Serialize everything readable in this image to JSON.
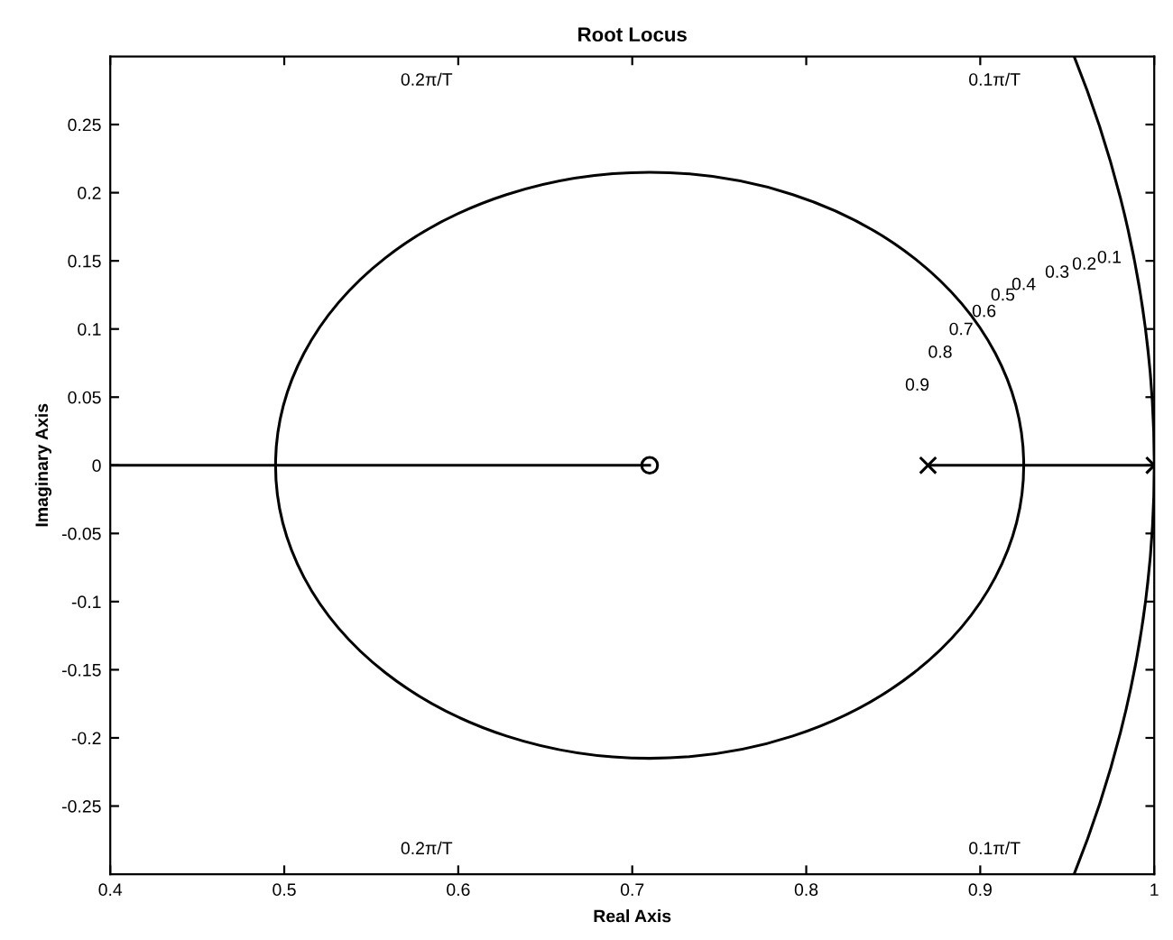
{
  "chart_data": {
    "type": "line",
    "title": "Root Locus",
    "xlabel": "Real Axis",
    "ylabel": "Imaginary Axis",
    "xlim": [
      0.4,
      1.0
    ],
    "ylim": [
      -0.3,
      0.3
    ],
    "xticks": [
      0.4,
      0.5,
      0.6,
      0.7,
      0.8,
      0.9,
      1
    ],
    "yticks": [
      -0.25,
      -0.2,
      -0.15,
      -0.1,
      -0.05,
      0,
      0.05,
      0.1,
      0.15,
      0.2,
      0.25
    ],
    "grid": false,
    "series": [
      {
        "color": "#000000",
        "x": [
          0.4,
          0.71
        ],
        "values": [
          0,
          0
        ]
      },
      {
        "color": "#000000",
        "x": [
          0.87,
          1.0
        ],
        "values": [
          0,
          0
        ]
      },
      {
        "type": "scatter",
        "color": "#000000",
        "marker": "circle",
        "x": [
          0.71
        ],
        "values": [
          0
        ]
      },
      {
        "type": "scatter",
        "color": "#000000",
        "marker": "cross",
        "x": [
          0.87,
          1.0
        ],
        "values": [
          0,
          0
        ]
      }
    ],
    "annotations": [
      "0.9",
      "0.8",
      "0.7",
      "0.6",
      "0.5",
      "0.4",
      "0.3",
      "0.2",
      "0.1",
      "0.2π/T",
      "0.1π/T",
      "0.2π/T",
      "0.1π/T"
    ]
  }
}
